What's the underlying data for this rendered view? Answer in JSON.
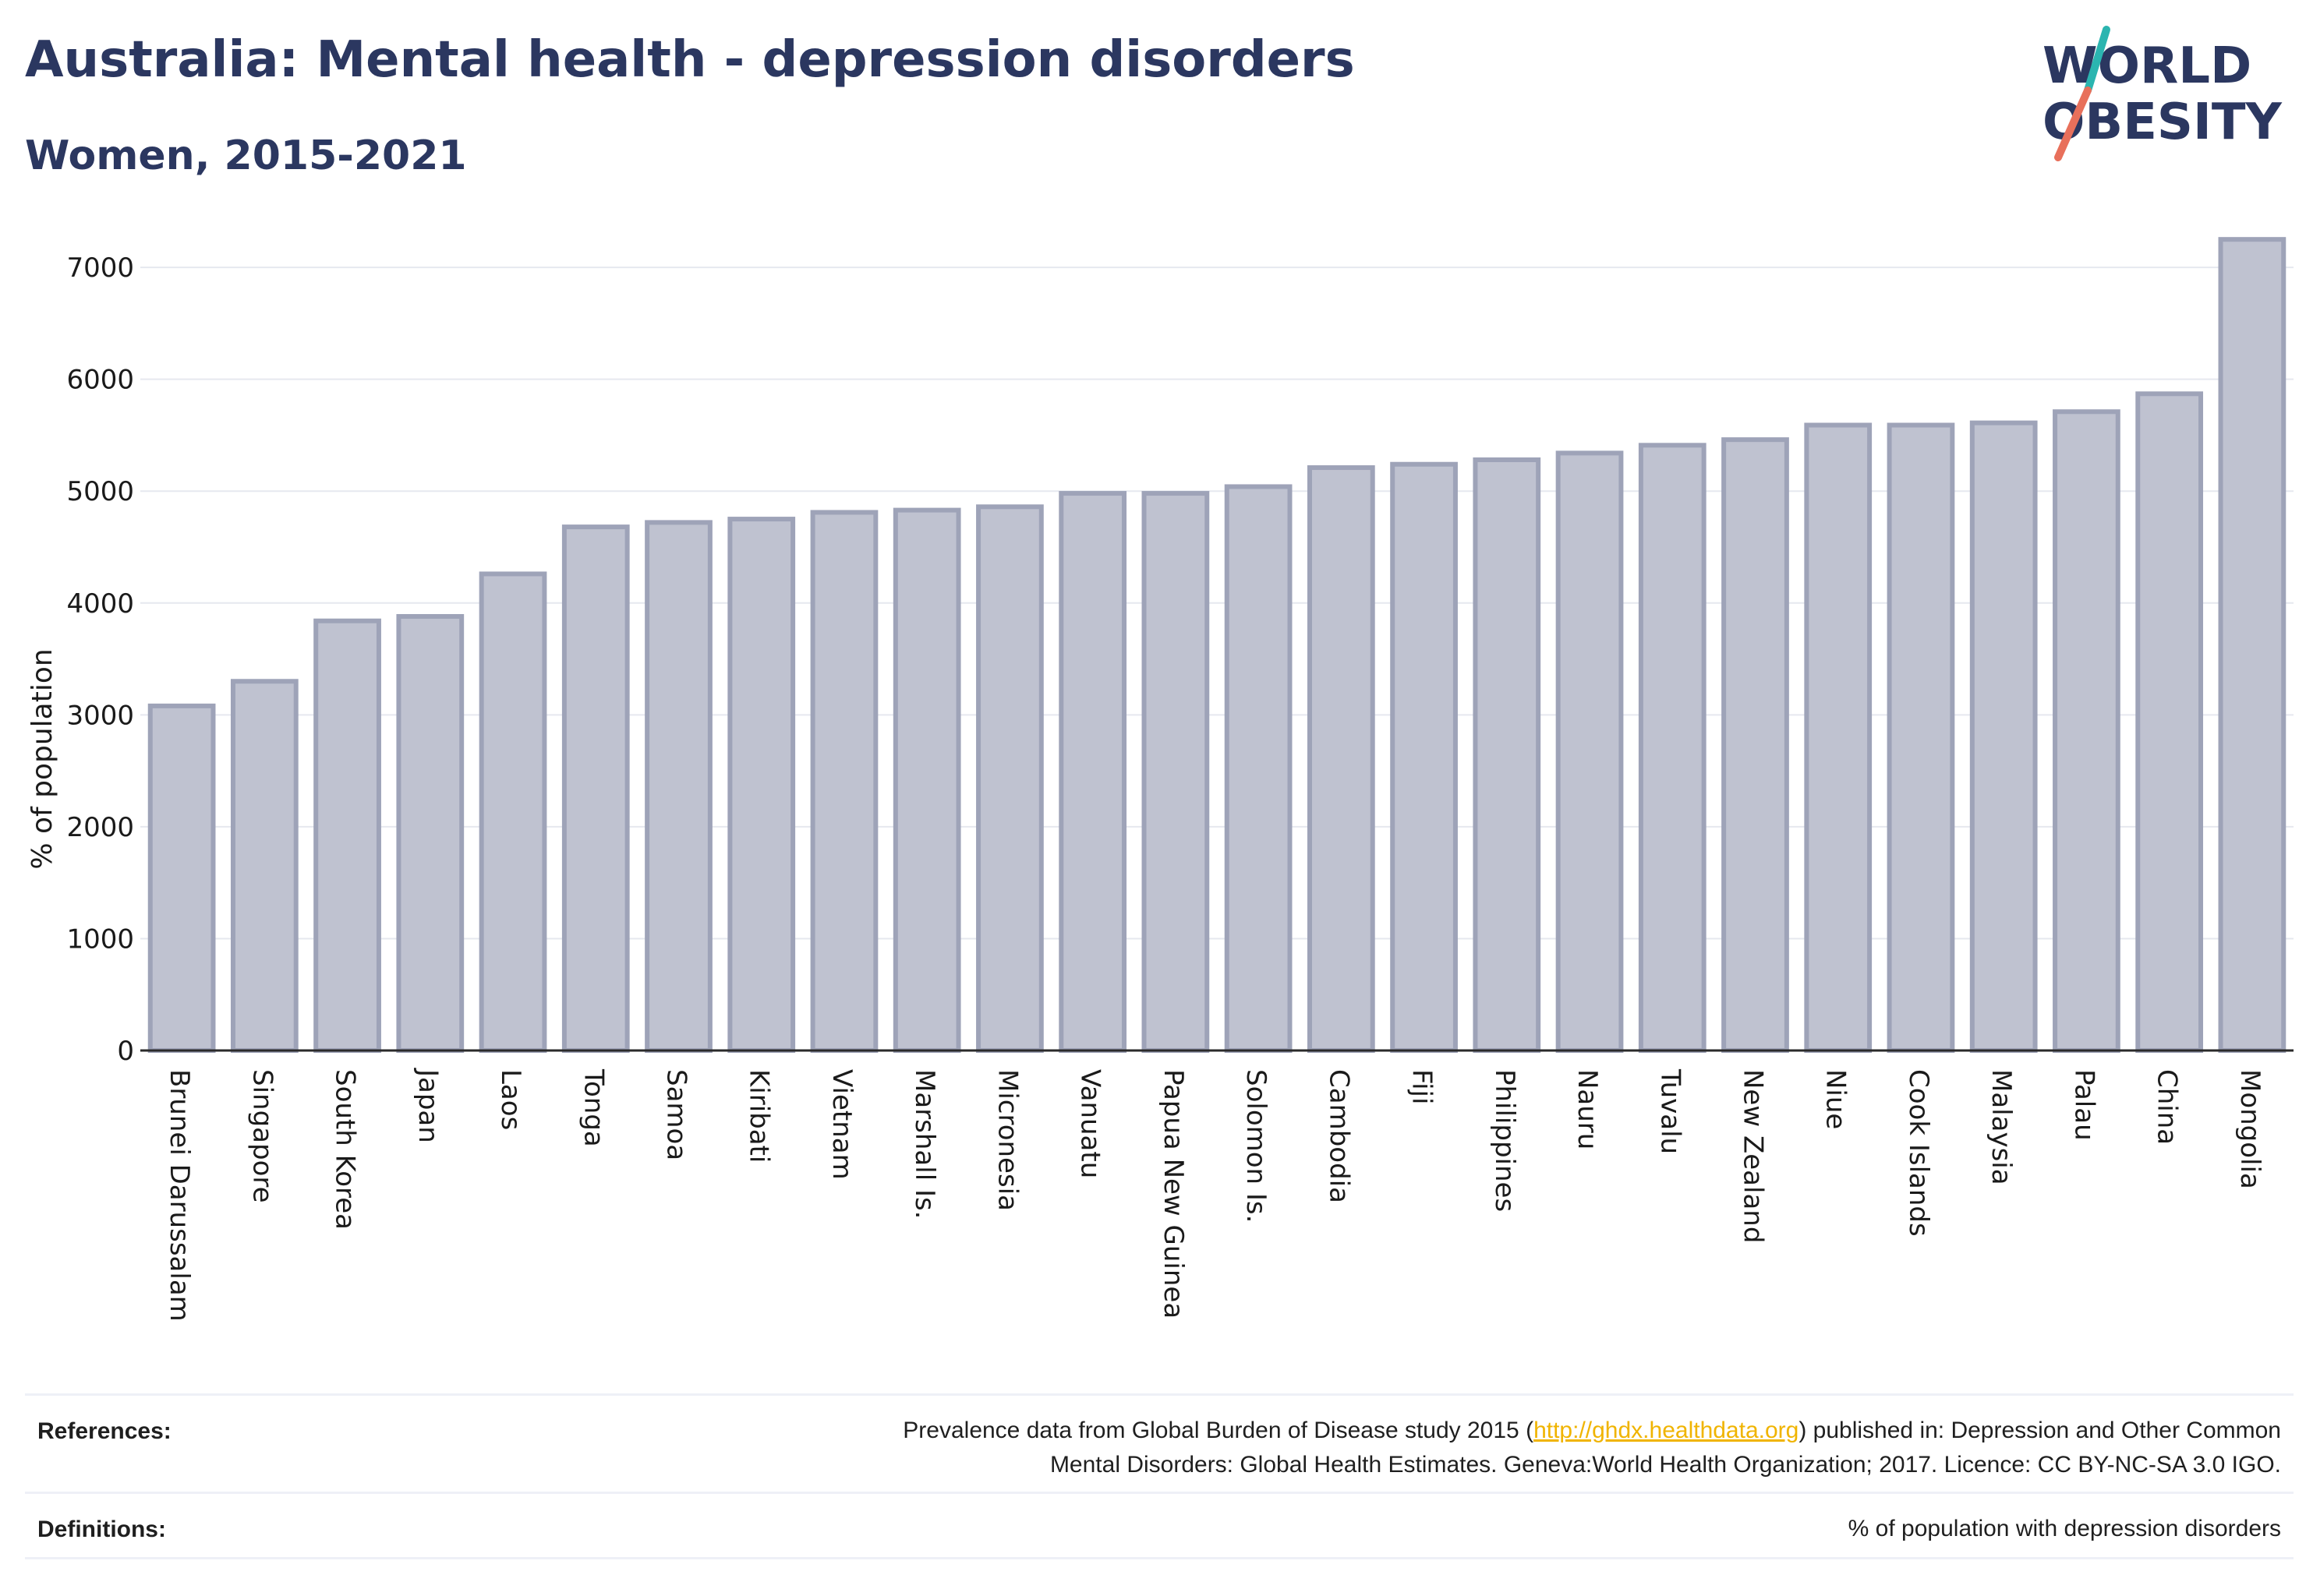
{
  "header": {
    "title": "Australia: Mental health - depression disorders",
    "subtitle": "Women, 2015-2021"
  },
  "logo": {
    "line1": "WORLD",
    "line2": "OBESITY",
    "icon": "world-obesity-logo",
    "colors": {
      "text": "#2b3760",
      "slash_top": "#2bb5b0",
      "slash_bottom": "#e8705b"
    }
  },
  "chart_data": {
    "type": "bar",
    "title": "Australia: Mental health - depression disorders",
    "subtitle": "Women, 2015-2021",
    "xlabel": "",
    "ylabel": "% of population",
    "ylim": [
      0,
      7300
    ],
    "yticks": [
      0,
      1000,
      2000,
      3000,
      4000,
      5000,
      6000,
      7000
    ],
    "grid": true,
    "bar_color": "#bfc2d0",
    "bar_edge_color": "#9ea3b8",
    "categories": [
      "Brunei Darussalam",
      "Singapore",
      "South Korea",
      "Japan",
      "Laos",
      "Tonga",
      "Samoa",
      "Kiribati",
      "Vietnam",
      "Marshall Is.",
      "Micronesia",
      "Vanuatu",
      "Papua New Guinea",
      "Solomon Is.",
      "Cambodia",
      "Fiji",
      "Philippines",
      "Nauru",
      "Tuvalu",
      "New Zealand",
      "Niue",
      "Cook Islands",
      "Malaysia",
      "Palau",
      "China",
      "Mongolia"
    ],
    "values": [
      3080,
      3300,
      3840,
      3880,
      4260,
      4680,
      4720,
      4750,
      4810,
      4830,
      4860,
      4980,
      4980,
      5040,
      5210,
      5240,
      5280,
      5340,
      5410,
      5460,
      5590,
      5590,
      5610,
      5710,
      5870,
      7250
    ]
  },
  "footer": {
    "references_label": "References:",
    "references_line1_pre": "Prevalence data from Global Burden of Disease study 2015 (",
    "references_link": "http://ghdx.healthdata.org",
    "references_line1_post": ") published in: Depression and Other Common",
    "references_line2": "Mental Disorders: Global Health Estimates. Geneva:World Health Organization; 2017. Licence: CC BY-NC-SA 3.0 IGO.",
    "definitions_label": "Definitions:",
    "definitions_text": "% of population with depression disorders"
  }
}
